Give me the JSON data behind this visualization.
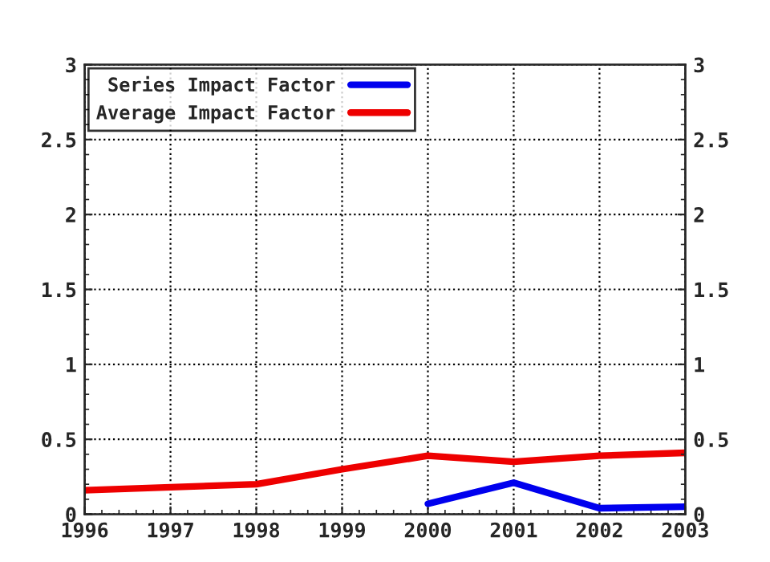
{
  "chart_data": {
    "type": "line",
    "x": [
      1996,
      1997,
      1998,
      1999,
      2000,
      2001,
      2002,
      2003
    ],
    "series": [
      {
        "name": "Series Impact Factor",
        "color": "#0000ee",
        "values": [
          null,
          null,
          null,
          null,
          0.07,
          0.21,
          0.04,
          0.05
        ]
      },
      {
        "name": "Average Impact Factor",
        "color": "#ee0000",
        "values": [
          0.16,
          0.18,
          0.2,
          0.3,
          0.39,
          0.35,
          0.39,
          0.41
        ]
      }
    ],
    "xlim": [
      1996,
      2003
    ],
    "xticks": [
      1996,
      1997,
      1998,
      1999,
      2000,
      2001,
      2002,
      2003
    ],
    "ylim": [
      0,
      3
    ],
    "yticks": [
      0,
      0.5,
      1,
      1.5,
      2,
      2.5,
      3
    ],
    "y2lim": [
      0,
      3
    ],
    "y2ticks": [
      0,
      0.5,
      1,
      1.5,
      2,
      2.5,
      3
    ],
    "grid": true,
    "legend": "top left",
    "line_style": "solid",
    "marker": "none"
  }
}
